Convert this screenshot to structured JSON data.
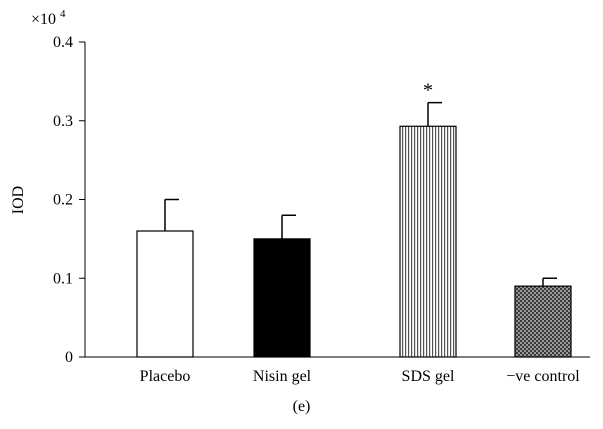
{
  "chart_data": {
    "type": "bar",
    "multiplier": {
      "base": "×10",
      "exponent": "4"
    },
    "ylabel": "IOD",
    "xlabel": "",
    "ylim": [
      0,
      0.4
    ],
    "yticks": [
      "0",
      "0.1",
      "0.2",
      "0.3",
      "0.4"
    ],
    "categories": [
      "Placebo",
      "Nisin gel",
      "SDS gel",
      "−ve control"
    ],
    "values": [
      0.16,
      0.15,
      0.293,
      0.09
    ],
    "error_upper": [
      0.04,
      0.03,
      0.03,
      0.01
    ],
    "bar_fills": [
      "white",
      "solid-black",
      "vertical-stripes",
      "checker"
    ],
    "annotations": [
      "",
      "",
      "*",
      ""
    ],
    "grid": false
  },
  "caption": "(e)"
}
